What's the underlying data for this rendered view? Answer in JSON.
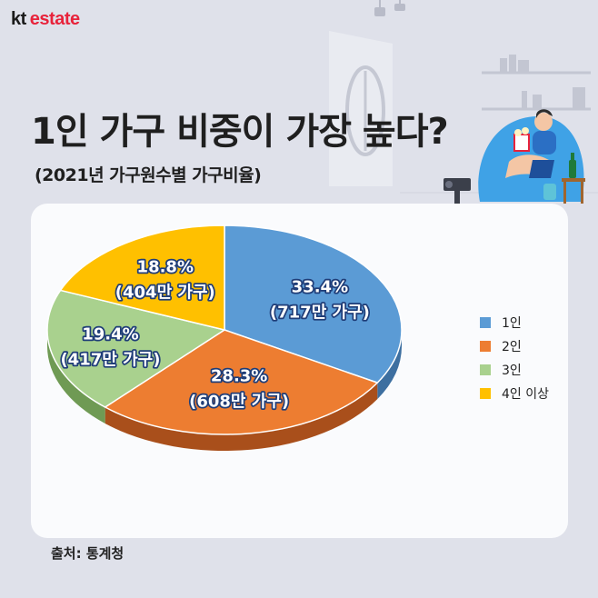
{
  "logo": {
    "brand": "kt",
    "product": "estate"
  },
  "title": "1인 가구 비중이 가장 높다?",
  "subtitle": "(2021년 가구원수별 가구비율)",
  "source": "출처: 통계청",
  "colors": {
    "background": "#dfe1ea",
    "brand_red": "#e8233b",
    "label_stroke": "#1f3d78"
  },
  "chart_data": {
    "type": "pie",
    "title": "1인 가구 비중이 가장 높다?",
    "subtitle": "(2021년 가구원수별 가구비율)",
    "legend_position": "right",
    "three_d": true,
    "slices": [
      {
        "label": "1인",
        "percent": 33.4,
        "households": "717만 가구",
        "pct_text": "33.4%",
        "hh_text": "(717만 가구)",
        "color": "#5b9bd5",
        "side_color": "#3d6fa0"
      },
      {
        "label": "2인",
        "percent": 28.3,
        "households": "608만 가구",
        "pct_text": "28.3%",
        "hh_text": "(608만 가구)",
        "color": "#ed7d31",
        "side_color": "#a94f1b"
      },
      {
        "label": "3인",
        "percent": 19.4,
        "households": "417만 가구",
        "pct_text": "19.4%",
        "hh_text": "(417만 가구)",
        "color": "#a9d18e",
        "side_color": "#6f9a54"
      },
      {
        "label": "4인 이상",
        "percent": 18.8,
        "households": "404만 가구",
        "pct_text": "18.8%",
        "hh_text": "(404만 가구)",
        "color": "#ffc000",
        "side_color": "#b58800"
      }
    ]
  },
  "legend": [
    {
      "label": "1인",
      "color": "#5b9bd5"
    },
    {
      "label": "2인",
      "color": "#ed7d31"
    },
    {
      "label": "3인",
      "color": "#a9d18e"
    },
    {
      "label": "4인 이상",
      "color": "#ffc000"
    }
  ]
}
